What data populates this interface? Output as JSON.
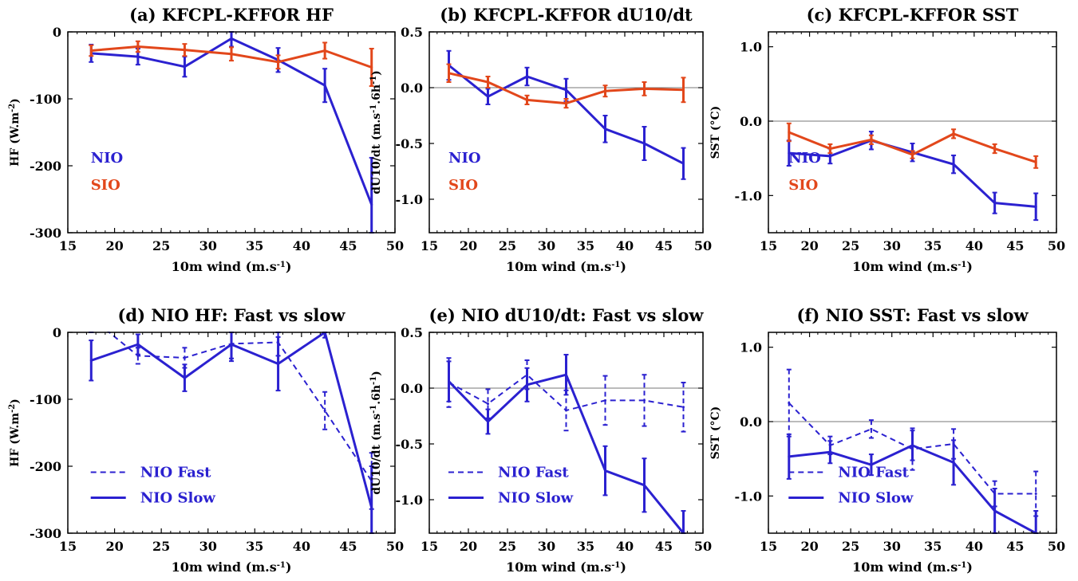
{
  "colors": {
    "nio": "#2b21d0",
    "sio": "#e2471b",
    "axis": "#000000",
    "zero": "#777777"
  },
  "chart_data": [
    {
      "id": "a",
      "type": "line",
      "title": "(a) KFCPL-KFFOR HF",
      "xlabel": "10m wind (m.s-1)",
      "ylabel": "HF (W.m-2)",
      "xlim": [
        15,
        50
      ],
      "ylim": [
        -300,
        0
      ],
      "xticks": [
        15,
        20,
        25,
        30,
        35,
        40,
        45,
        50
      ],
      "yticks": [
        0,
        -100,
        -200,
        -300
      ],
      "ytick_labels": [
        "0",
        "-100",
        "-200",
        "-300"
      ],
      "zero_line": false,
      "series": [
        {
          "name": "NIO",
          "color": "#2b21d0",
          "dashed": false,
          "x": [
            17.5,
            22.5,
            27.5,
            32.5,
            37.5,
            42.5,
            47.5
          ],
          "y": [
            -32,
            -37,
            -52,
            -10,
            -42,
            -80,
            -258
          ],
          "err": [
            13,
            12,
            15,
            12,
            18,
            25,
            70
          ]
        },
        {
          "name": "SIO",
          "color": "#e2471b",
          "dashed": false,
          "x": [
            17.5,
            22.5,
            27.5,
            32.5,
            37.5,
            42.5,
            47.5
          ],
          "y": [
            -28,
            -22,
            -27,
            -33,
            -45,
            -28,
            -53
          ],
          "err": [
            8,
            8,
            9,
            10,
            10,
            12,
            28
          ]
        }
      ],
      "legend": [
        {
          "text": "NIO",
          "color": "#2b21d0",
          "style": "text"
        },
        {
          "text": "SIO",
          "color": "#e2471b",
          "style": "text"
        }
      ]
    },
    {
      "id": "b",
      "type": "line",
      "title": "(b) KFCPL-KFFOR dU10/dt",
      "xlabel": "10m wind (m.s-1)",
      "ylabel": "dU10/dt (m.s-1.6h-1)",
      "xlim": [
        15,
        50
      ],
      "ylim": [
        -1.3,
        0.5
      ],
      "xticks": [
        15,
        20,
        25,
        30,
        35,
        40,
        45,
        50
      ],
      "yticks": [
        0.5,
        0.0,
        -0.5,
        -1.0
      ],
      "ytick_labels": [
        "0.5",
        "0.0",
        "-0.5",
        "-1.0"
      ],
      "zero_line": true,
      "series": [
        {
          "name": "NIO",
          "color": "#2b21d0",
          "dashed": false,
          "x": [
            17.5,
            22.5,
            27.5,
            32.5,
            37.5,
            42.5,
            47.5
          ],
          "y": [
            0.2,
            -0.08,
            0.1,
            -0.02,
            -0.37,
            -0.5,
            -0.68
          ],
          "err": [
            0.13,
            0.07,
            0.08,
            0.1,
            0.12,
            0.15,
            0.14
          ]
        },
        {
          "name": "SIO",
          "color": "#e2471b",
          "dashed": false,
          "x": [
            17.5,
            22.5,
            27.5,
            32.5,
            37.5,
            42.5,
            47.5
          ],
          "y": [
            0.13,
            0.05,
            -0.11,
            -0.14,
            -0.03,
            -0.01,
            -0.02
          ],
          "err": [
            0.08,
            0.05,
            0.04,
            0.04,
            0.05,
            0.06,
            0.11
          ]
        }
      ],
      "legend": [
        {
          "text": "NIO",
          "color": "#2b21d0",
          "style": "text"
        },
        {
          "text": "SIO",
          "color": "#e2471b",
          "style": "text"
        }
      ]
    },
    {
      "id": "c",
      "type": "line",
      "title": "(c) KFCPL-KFFOR SST",
      "xlabel": "10m wind (m.s-1)",
      "ylabel": "SST (°C)",
      "xlim": [
        15,
        50
      ],
      "ylim": [
        -1.5,
        1.2
      ],
      "xticks": [
        15,
        20,
        25,
        30,
        35,
        40,
        45,
        50
      ],
      "yticks": [
        1.0,
        0.0,
        -1.0
      ],
      "ytick_labels": [
        "1.0",
        "0.0",
        "-1.0"
      ],
      "zero_line": true,
      "series": [
        {
          "name": "NIO",
          "color": "#2b21d0",
          "dashed": false,
          "x": [
            17.5,
            22.5,
            27.5,
            32.5,
            37.5,
            42.5,
            47.5
          ],
          "y": [
            -0.43,
            -0.47,
            -0.26,
            -0.42,
            -0.58,
            -1.1,
            -1.15
          ],
          "err": [
            0.17,
            0.1,
            0.12,
            0.12,
            0.12,
            0.14,
            0.18
          ]
        },
        {
          "name": "SIO",
          "color": "#e2471b",
          "dashed": false,
          "x": [
            17.5,
            22.5,
            27.5,
            32.5,
            37.5,
            42.5,
            47.5
          ],
          "y": [
            -0.15,
            -0.37,
            -0.25,
            -0.45,
            -0.17,
            -0.37,
            -0.55
          ],
          "err": [
            0.12,
            0.06,
            0.06,
            0.05,
            0.06,
            0.06,
            0.08
          ]
        }
      ],
      "legend": [
        {
          "text": "NIO",
          "color": "#2b21d0",
          "style": "text"
        },
        {
          "text": "SIO",
          "color": "#e2471b",
          "style": "text"
        }
      ]
    },
    {
      "id": "d",
      "type": "line",
      "title": "(d) NIO HF: Fast vs slow",
      "xlabel": "10m wind (m.s-1)",
      "ylabel": "HF (W.m-2)",
      "xlim": [
        15,
        50
      ],
      "ylim": [
        -300,
        0
      ],
      "xticks": [
        15,
        20,
        25,
        30,
        35,
        40,
        45,
        50
      ],
      "yticks": [
        0,
        -100,
        -200,
        -300
      ],
      "ytick_labels": [
        "0",
        "-100",
        "-200",
        "-300"
      ],
      "zero_line": false,
      "series": [
        {
          "name": "NIO Fast",
          "color": "#2b21d0",
          "dashed": true,
          "x": [
            17.5,
            22.5,
            27.5,
            32.5,
            37.5,
            42.5,
            47.5
          ],
          "y": [
            22,
            -35,
            -38,
            -17,
            -15,
            -117,
            -222
          ],
          "err": [
            10,
            12,
            15,
            22,
            20,
            28,
            42
          ]
        },
        {
          "name": "NIO Slow",
          "color": "#2b21d0",
          "dashed": false,
          "x": [
            17.5,
            22.5,
            27.5,
            32.5,
            37.5,
            42.5,
            47.5
          ],
          "y": [
            -42,
            -18,
            -68,
            -18,
            -47,
            0,
            -262
          ],
          "err": [
            30,
            15,
            20,
            25,
            40,
            8,
            62
          ]
        }
      ],
      "legend": [
        {
          "text": "NIO Fast",
          "color": "#2b21d0",
          "style": "dashed"
        },
        {
          "text": "NIO Slow",
          "color": "#2b21d0",
          "style": "solid"
        }
      ]
    },
    {
      "id": "e",
      "type": "line",
      "title": "(e) NIO dU10/dt: Fast vs slow",
      "xlabel": "10m wind (m.s-1)",
      "ylabel": "dU10/dt (m.s-1.6h-1)",
      "xlim": [
        15,
        50
      ],
      "ylim": [
        -1.3,
        0.5
      ],
      "xticks": [
        15,
        20,
        25,
        30,
        35,
        40,
        45,
        50
      ],
      "yticks": [
        0.5,
        0.0,
        -0.5,
        -1.0
      ],
      "ytick_labels": [
        "0.5",
        "0.0",
        "-0.5",
        "-1.0"
      ],
      "zero_line": true,
      "series": [
        {
          "name": "NIO Fast",
          "color": "#2b21d0",
          "dashed": true,
          "x": [
            17.5,
            22.5,
            27.5,
            32.5,
            37.5,
            42.5,
            47.5
          ],
          "y": [
            0.05,
            -0.14,
            0.12,
            -0.2,
            -0.11,
            -0.11,
            -0.17
          ],
          "err": [
            0.22,
            0.13,
            0.13,
            0.18,
            0.22,
            0.23,
            0.22
          ]
        },
        {
          "name": "NIO Slow",
          "color": "#2b21d0",
          "dashed": false,
          "x": [
            17.5,
            22.5,
            27.5,
            32.5,
            37.5,
            42.5,
            47.5
          ],
          "y": [
            0.06,
            -0.3,
            0.03,
            0.12,
            -0.74,
            -0.87,
            -1.3
          ],
          "err": [
            0.18,
            0.11,
            0.15,
            0.18,
            0.22,
            0.24,
            0.2
          ]
        }
      ],
      "legend": [
        {
          "text": "NIO Fast",
          "color": "#2b21d0",
          "style": "dashed"
        },
        {
          "text": "NIO Slow",
          "color": "#2b21d0",
          "style": "solid"
        }
      ]
    },
    {
      "id": "f",
      "type": "line",
      "title": "(f) NIO SST: Fast vs slow",
      "xlabel": "10m wind (m.s-1)",
      "ylabel": "SST (°C)",
      "xlim": [
        15,
        50
      ],
      "ylim": [
        -1.5,
        1.2
      ],
      "xticks": [
        15,
        20,
        25,
        30,
        35,
        40,
        45,
        50
      ],
      "yticks": [
        1.0,
        0.0,
        -1.0
      ],
      "ytick_labels": [
        "1.0",
        "0.0",
        "-1.0"
      ],
      "zero_line": true,
      "series": [
        {
          "name": "NIO Fast",
          "color": "#2b21d0",
          "dashed": true,
          "x": [
            17.5,
            22.5,
            27.5,
            32.5,
            37.5,
            42.5,
            47.5
          ],
          "y": [
            0.25,
            -0.32,
            -0.1,
            -0.37,
            -0.3,
            -0.97,
            -0.97
          ],
          "err": [
            0.45,
            0.12,
            0.12,
            0.28,
            0.2,
            0.17,
            0.3
          ]
        },
        {
          "name": "NIO Slow",
          "color": "#2b21d0",
          "dashed": false,
          "x": [
            17.5,
            22.5,
            27.5,
            32.5,
            37.5,
            42.5,
            47.5
          ],
          "y": [
            -0.47,
            -0.41,
            -0.58,
            -0.32,
            -0.55,
            -1.2,
            -1.5
          ],
          "err": [
            0.3,
            0.15,
            0.14,
            0.2,
            0.3,
            0.3,
            0.3
          ]
        }
      ],
      "legend": [
        {
          "text": "NIO Fast",
          "color": "#2b21d0",
          "style": "dashed"
        },
        {
          "text": "NIO Slow",
          "color": "#2b21d0",
          "style": "solid"
        }
      ]
    }
  ]
}
